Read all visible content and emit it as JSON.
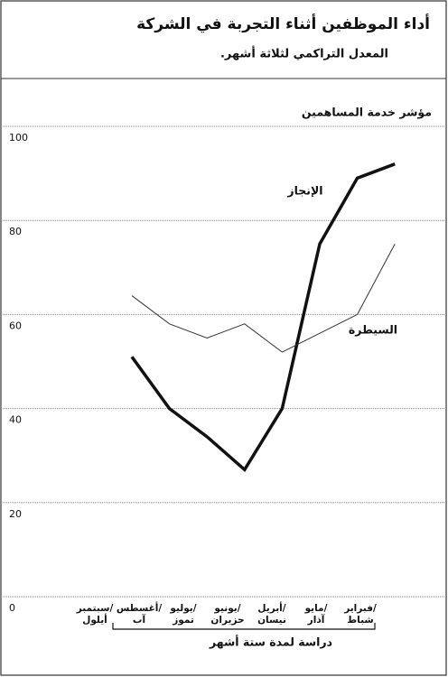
{
  "chart_data": {
    "type": "line",
    "title": "أداء الموظفين أثناء التجربة في الشركة",
    "subtitle": "المعدل التراكمي لثلاثة أشهر.",
    "y_label": "مؤشر خدمة المساهمين",
    "categories": [
      "سبتمبر/ أيلول",
      "أغسطس/ آب",
      "يوليو/ تموز",
      "يونيو/ حزيران",
      "أبريل/ نيسان",
      "مايو/ آذار",
      "فبراير/ شباط",
      null
    ],
    "series": [
      {
        "name": "الإنجاز",
        "color": "#111111",
        "width": 3.5,
        "values": [
          51,
          40,
          34,
          27,
          40,
          75,
          89,
          92
        ]
      },
      {
        "name": "السيطرة",
        "color": "#333333",
        "width": 1,
        "values": [
          64,
          58,
          55,
          58,
          52,
          56,
          60,
          75
        ]
      }
    ],
    "annotation": "دراسة لمدة ستة أشهر",
    "ylim": [
      0,
      100
    ],
    "yticks": [
      0,
      20,
      40,
      60,
      80,
      100
    ],
    "grid": true
  }
}
